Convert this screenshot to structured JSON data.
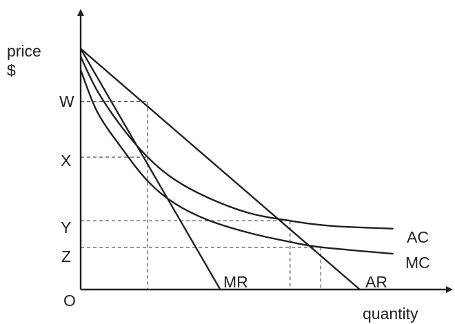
{
  "chart_data": {
    "type": "line",
    "title": "",
    "xlabel": "quantity",
    "ylabel_lines": [
      "price",
      "$"
    ],
    "origin_label": "O",
    "y_tick_labels": [
      "W",
      "X",
      "Y",
      "Z"
    ],
    "xlim": [
      0,
      10
    ],
    "ylim": [
      0,
      10
    ],
    "ticks_y": {
      "W": 7.1,
      "X": 5.0,
      "Y": 2.6,
      "Z": 1.6
    },
    "ticks_x": {
      "q_mr": 2.4,
      "q_ac": 7.5,
      "q_mc": 8.6
    },
    "series": [
      {
        "name": "AR",
        "kind": "linear",
        "x": [
          0,
          10
        ],
        "y": [
          9.1,
          0
        ]
      },
      {
        "name": "MR",
        "kind": "linear",
        "x": [
          0,
          5.0
        ],
        "y": [
          9.1,
          0
        ]
      },
      {
        "name": "AC",
        "kind": "curve",
        "x": [
          0,
          0.6,
          1.5,
          2.4,
          3.3,
          4.5,
          6.0,
          7.5,
          9.0,
          11.2
        ],
        "y": [
          8.8,
          7.5,
          6.1,
          5.0,
          4.2,
          3.5,
          2.9,
          2.6,
          2.4,
          2.3
        ]
      },
      {
        "name": "MC",
        "kind": "curve",
        "x": [
          0,
          0.6,
          1.5,
          2.4,
          3.3,
          4.5,
          6.0,
          7.5,
          8.6,
          11.2
        ],
        "y": [
          8.3,
          6.7,
          5.3,
          4.1,
          3.3,
          2.65,
          2.15,
          1.8,
          1.6,
          1.35
        ]
      }
    ],
    "grid": false,
    "legend": "none (curves labelled at their ends)"
  }
}
